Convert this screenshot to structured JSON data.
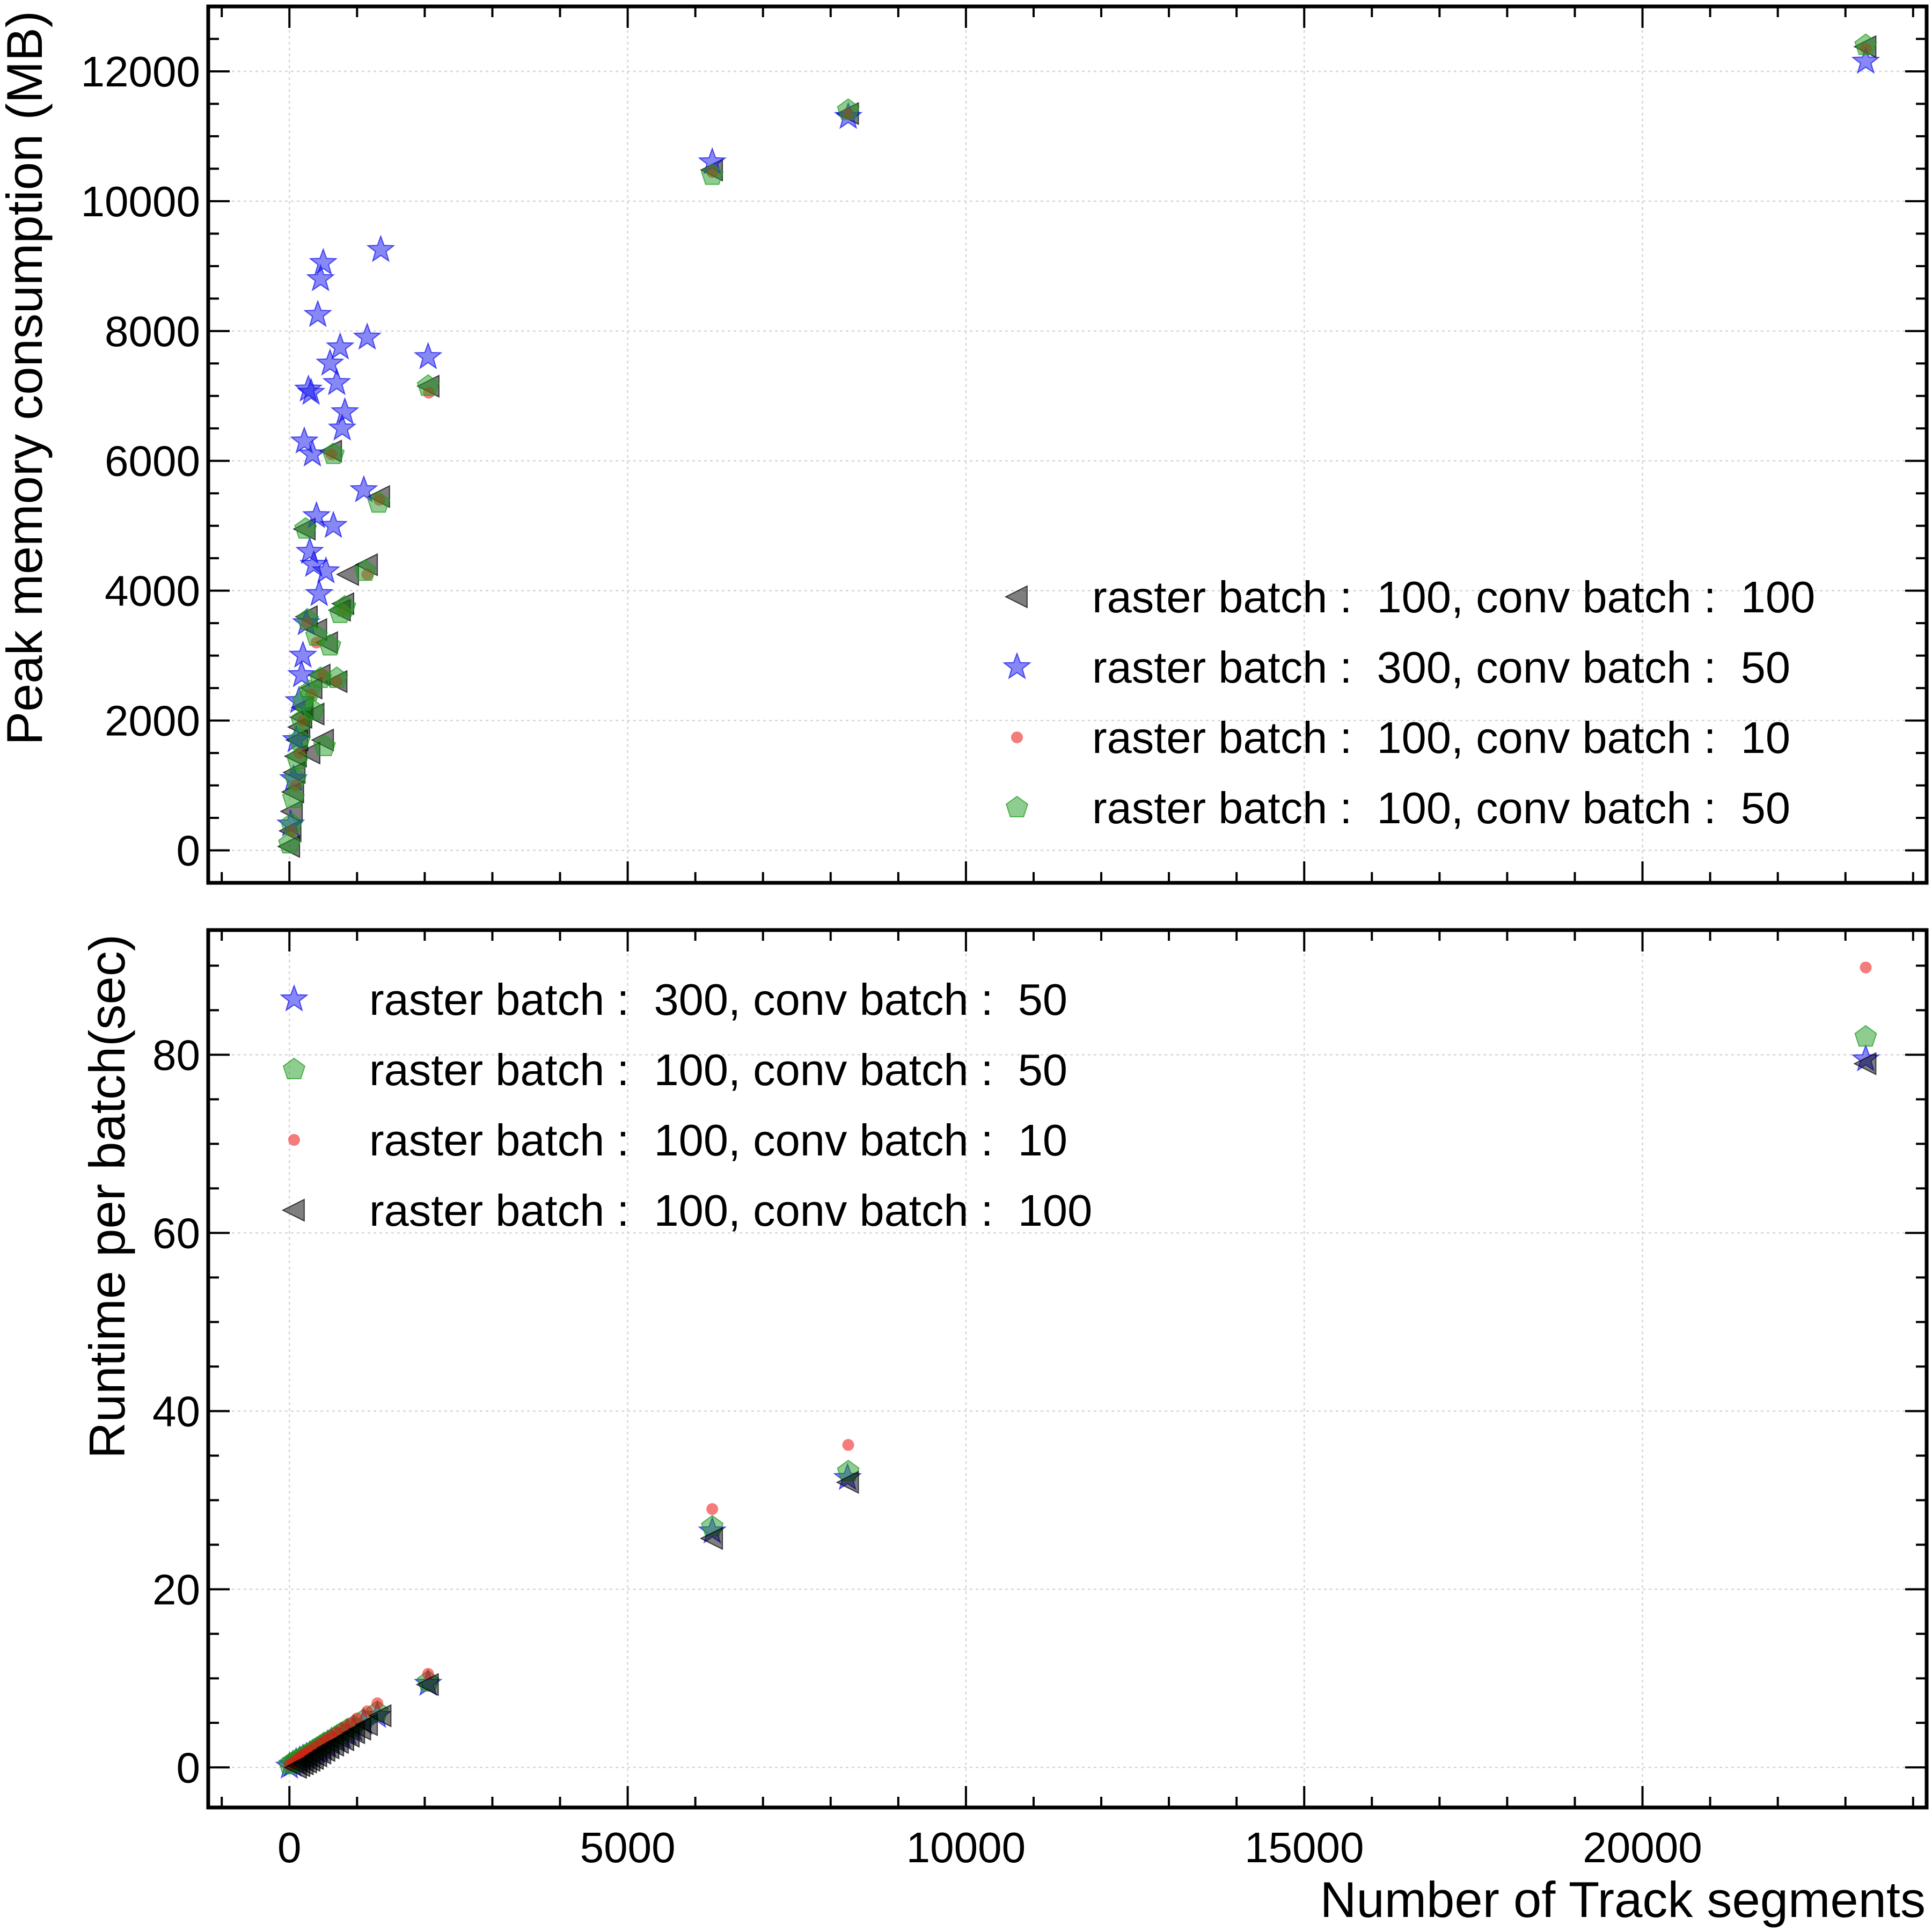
{
  "colors": {
    "raster100_conv100": "#000000",
    "raster300_conv50": "#1010ee",
    "raster100_conv10": "#ee1111",
    "raster100_conv50": "#1f9a1f"
  },
  "chart_data": [
    {
      "type": "scatter",
      "title": "",
      "xlabel": "",
      "ylabel": "Peak memory consumption (MB)",
      "xlim": [
        -1200,
        24200
      ],
      "ylim": [
        -500,
        13000
      ],
      "xticks": [
        0,
        5000,
        10000,
        15000,
        20000
      ],
      "yticks": [
        0,
        2000,
        4000,
        6000,
        8000,
        10000,
        12000
      ],
      "ytick_labels": [
        "0",
        "2000",
        "4000",
        "6000",
        "8000",
        "10000",
        "12000"
      ],
      "grid": true,
      "legend_position": "lower-right",
      "series": [
        {
          "name": "raster batch :  100, conv batch :  100",
          "marker": "triangle-left",
          "color_key": "raster100_conv100",
          "x": [
            0,
            20,
            40,
            60,
            80,
            100,
            120,
            150,
            180,
            200,
            230,
            260,
            300,
            330,
            360,
            400,
            450,
            500,
            560,
            620,
            700,
            750,
            800,
            870,
            1150,
            1330,
            2060,
            6250,
            8260,
            23300
          ],
          "y": [
            60,
            300,
            600,
            900,
            1200,
            1450,
            1700,
            1900,
            2050,
            2200,
            4950,
            3600,
            1500,
            2500,
            2100,
            3400,
            2700,
            1700,
            3200,
            6150,
            2600,
            3700,
            3800,
            4250,
            4400,
            5450,
            7150,
            10480,
            11350,
            12380
          ]
        },
        {
          "name": "raster batch :  300, conv batch :  50",
          "marker": "star",
          "color_key": "raster300_conv50",
          "x": [
            20,
            60,
            100,
            140,
            180,
            200,
            220,
            250,
            280,
            300,
            320,
            340,
            360,
            400,
            420,
            440,
            460,
            500,
            540,
            600,
            650,
            700,
            750,
            780,
            820,
            1100,
            1150,
            1350,
            2050,
            6250,
            8260,
            23300
          ],
          "y": [
            400,
            1100,
            1700,
            2300,
            2700,
            3000,
            6300,
            3500,
            7100,
            4600,
            7050,
            6100,
            4400,
            5150,
            8250,
            3950,
            8800,
            9050,
            4300,
            7500,
            5000,
            7200,
            7750,
            6500,
            6750,
            5550,
            7900,
            9250,
            7600,
            10600,
            11300,
            12150
          ]
        },
        {
          "name": "raster batch :  100, conv batch :  10",
          "marker": "circle",
          "color_key": "raster100_conv10",
          "x": [
            30,
            90,
            150,
            200,
            260,
            320,
            400,
            500,
            620,
            700,
            800,
            1150,
            1330,
            2060,
            6250,
            8260,
            23300
          ],
          "y": [
            300,
            1000,
            1500,
            2000,
            3500,
            2400,
            3200,
            2700,
            6100,
            2600,
            3700,
            4250,
            5400,
            7050,
            10450,
            11350,
            12350
          ]
        },
        {
          "name": "raster batch :  100, conv batch :  50",
          "marker": "pentagon",
          "color_key": "raster100_conv50",
          "x": [
            0,
            30,
            60,
            90,
            120,
            150,
            180,
            210,
            240,
            270,
            300,
            350,
            400,
            460,
            520,
            600,
            650,
            700,
            750,
            820,
            1120,
            1320,
            2050,
            6250,
            8260,
            23300
          ],
          "y": [
            100,
            400,
            800,
            1100,
            1400,
            1700,
            2000,
            2300,
            4950,
            3550,
            2450,
            2150,
            3300,
            2650,
            1600,
            3150,
            6100,
            2650,
            3650,
            3750,
            4300,
            5350,
            7150,
            10400,
            11400,
            12400
          ]
        }
      ]
    },
    {
      "type": "scatter",
      "title": "",
      "xlabel": "Number of Track segments",
      "ylabel": "Runtime per batch(sec)",
      "xlim": [
        -1200,
        24200
      ],
      "ylim": [
        -4.5,
        94
      ],
      "xticks": [
        0,
        5000,
        10000,
        15000,
        20000
      ],
      "xtick_labels": [
        "0",
        "5000",
        "10000",
        "15000",
        "20000"
      ],
      "yticks": [
        0,
        20,
        40,
        60,
        80
      ],
      "ytick_labels": [
        "0",
        "20",
        "40",
        "60",
        "80"
      ],
      "grid": true,
      "legend_position": "upper-left",
      "series": [
        {
          "name": "raster batch :  300, conv batch :  50",
          "marker": "star",
          "color_key": "raster300_conv50",
          "x": [
            0,
            50,
            100,
            150,
            200,
            250,
            300,
            350,
            400,
            450,
            500,
            560,
            620,
            700,
            780,
            860,
            950,
            1100,
            1300,
            2050,
            6250,
            8250,
            23300
          ],
          "y": [
            0.1,
            0.3,
            0.6,
            0.8,
            1.0,
            1.2,
            1.4,
            1.6,
            1.8,
            2.0,
            2.3,
            2.6,
            2.9,
            3.2,
            3.5,
            3.9,
            4.3,
            5.0,
            5.8,
            9.4,
            26.5,
            32.5,
            79.5
          ]
        },
        {
          "name": "raster batch :  100, conv batch :  50",
          "marker": "pentagon",
          "color_key": "raster100_conv50",
          "x": [
            0,
            50,
            100,
            160,
            220,
            280,
            340,
            400,
            460,
            520,
            600,
            680,
            760,
            850,
            950,
            1100,
            1300,
            2050,
            6250,
            8260,
            23300
          ],
          "y": [
            0.3,
            0.5,
            0.8,
            1.0,
            1.3,
            1.5,
            1.8,
            2.1,
            2.4,
            2.7,
            3.0,
            3.4,
            3.8,
            4.2,
            4.6,
            5.3,
            6.2,
            9.6,
            27.0,
            33.2,
            82.0
          ]
        },
        {
          "name": "raster batch :  100, conv batch :  10",
          "marker": "circle",
          "color_key": "raster100_conv10",
          "x": [
            0,
            60,
            120,
            180,
            240,
            300,
            380,
            460,
            540,
            620,
            700,
            800,
            900,
            1000,
            1150,
            1300,
            2050,
            6250,
            8260,
            23300
          ],
          "y": [
            0.3,
            0.6,
            1.0,
            1.3,
            1.6,
            1.9,
            2.3,
            2.7,
            3.1,
            3.5,
            3.9,
            4.4,
            4.9,
            5.5,
            6.3,
            7.2,
            10.5,
            29.0,
            36.2,
            89.8
          ]
        },
        {
          "name": "raster batch :  100, conv batch :  100",
          "marker": "triangle-left",
          "color_key": "raster100_conv100",
          "x": [
            100,
            150,
            200,
            250,
            300,
            350,
            400,
            460,
            520,
            580,
            650,
            720,
            800,
            880,
            960,
            1050,
            1150,
            1350,
            2050,
            6250,
            8260,
            23300
          ],
          "y": [
            0.0,
            0.2,
            0.4,
            0.6,
            0.8,
            1.0,
            1.3,
            1.6,
            1.9,
            2.2,
            2.5,
            2.8,
            3.1,
            3.5,
            3.9,
            4.3,
            4.8,
            5.8,
            9.3,
            25.7,
            32.0,
            79.0
          ]
        }
      ]
    }
  ]
}
